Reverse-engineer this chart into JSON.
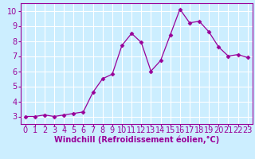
{
  "x": [
    0,
    1,
    2,
    3,
    4,
    5,
    6,
    7,
    8,
    9,
    10,
    11,
    12,
    13,
    14,
    15,
    16,
    17,
    18,
    19,
    20,
    21,
    22,
    23
  ],
  "y": [
    3.0,
    3.0,
    3.1,
    3.0,
    3.1,
    3.2,
    3.3,
    4.6,
    5.5,
    5.8,
    7.7,
    8.5,
    7.9,
    6.0,
    6.7,
    8.4,
    10.1,
    9.2,
    9.3,
    8.6,
    7.6,
    7.0,
    7.1,
    6.9
  ],
  "xlabel": "Windchill (Refroidissement éolien,°C)",
  "line_color": "#990099",
  "marker": "D",
  "marker_size": 2.5,
  "bg_color": "#cceeff",
  "grid_color": "#ffffff",
  "ylim": [
    2.5,
    10.5
  ],
  "xlim": [
    -0.5,
    23.5
  ],
  "yticks": [
    3,
    4,
    5,
    6,
    7,
    8,
    9,
    10
  ],
  "xticks": [
    0,
    1,
    2,
    3,
    4,
    5,
    6,
    7,
    8,
    9,
    10,
    11,
    12,
    13,
    14,
    15,
    16,
    17,
    18,
    19,
    20,
    21,
    22,
    23
  ],
  "xlabel_fontsize": 7,
  "tick_fontsize": 7,
  "line_color_hex": "#990099"
}
